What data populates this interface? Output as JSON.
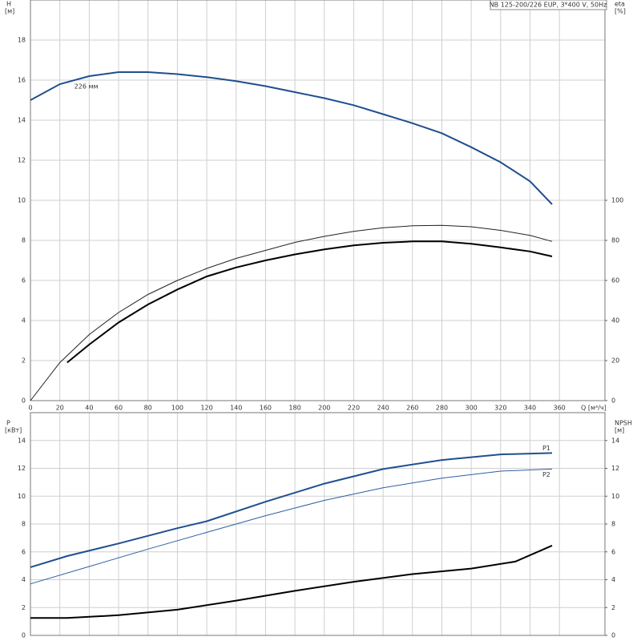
{
  "chart_data": [
    {
      "type": "line",
      "title": "NB 125-200/226 EUP, 3*400 V, 50Hz",
      "ylabel": "H",
      "yunit": "[м]",
      "y2label": "eta",
      "y2unit": "[%]",
      "xlabel": "Q [м³/ч]",
      "xlim": [
        0,
        391
      ],
      "xticks": [
        0,
        20,
        40,
        60,
        80,
        100,
        120,
        140,
        160,
        180,
        200,
        220,
        240,
        260,
        280,
        300,
        320,
        340,
        360
      ],
      "xtick_labels": true,
      "ylim": [
        0,
        20
      ],
      "yticks": [
        0,
        2,
        4,
        6,
        8,
        10,
        12,
        14,
        16,
        18
      ],
      "y2lim": [
        0,
        200
      ],
      "y2ticks": [
        0,
        20,
        40,
        60,
        80,
        100
      ],
      "grid": true,
      "series": [
        {
          "name": "226 мм",
          "color": "#1f4f8f",
          "width": 2,
          "x": [
            0,
            20,
            40,
            60,
            80,
            100,
            120,
            140,
            160,
            180,
            200,
            220,
            240,
            260,
            280,
            300,
            320,
            340,
            355
          ],
          "values": [
            15,
            15.8,
            16.2,
            16.4,
            16.4,
            16.3,
            16.15,
            15.95,
            15.7,
            15.4,
            15.1,
            14.75,
            14.3,
            13.85,
            13.35,
            12.65,
            11.9,
            10.95,
            9.8
          ]
        },
        {
          "color": "#222222",
          "width": 1,
          "axis": "y2",
          "x": [
            0,
            20,
            40,
            60,
            80,
            100,
            120,
            140,
            160,
            180,
            200,
            220,
            240,
            260,
            280,
            300,
            320,
            340,
            355
          ],
          "values": [
            0,
            19,
            33,
            44,
            53,
            60,
            66,
            71,
            75,
            79,
            82,
            84.5,
            86.3,
            87.3,
            87.5,
            86.8,
            85,
            82.5,
            79.5
          ]
        },
        {
          "color": "#000000",
          "width": 2,
          "axis": "y2",
          "x": [
            25,
            40,
            60,
            80,
            100,
            120,
            140,
            160,
            180,
            200,
            220,
            240,
            260,
            280,
            300,
            320,
            340,
            355
          ],
          "values": [
            19,
            28,
            39,
            48,
            55.5,
            62,
            66.5,
            70,
            73,
            75.5,
            77.5,
            78.8,
            79.5,
            79.5,
            78.3,
            76.5,
            74.5,
            72
          ]
        }
      ]
    },
    {
      "type": "line",
      "ylabel": "P",
      "yunit": "[кВт]",
      "y2label": "NPSH",
      "y2unit": "[м]",
      "xlim": [
        0,
        391
      ],
      "xticks": [
        0,
        20,
        40,
        60,
        80,
        100,
        120,
        140,
        160,
        180,
        200,
        220,
        240,
        260,
        280,
        300,
        320,
        340,
        360
      ],
      "xtick_labels": false,
      "ylim": [
        0,
        16
      ],
      "yticks": [
        0,
        2,
        4,
        6,
        8,
        10,
        12,
        14
      ],
      "y2lim": [
        0,
        16
      ],
      "y2ticks": [
        0,
        2,
        4,
        6,
        8,
        10,
        12,
        14
      ],
      "grid": true,
      "series": [
        {
          "name": "P1",
          "color": "#1f4f8f",
          "width": 2,
          "x": [
            0,
            25,
            60,
            100,
            120,
            160,
            200,
            240,
            280,
            320,
            355
          ],
          "values": [
            4.9,
            5.7,
            6.6,
            7.7,
            8.2,
            9.6,
            10.9,
            11.95,
            12.6,
            13.0,
            13.1
          ]
        },
        {
          "name": "P2",
          "color": "#2f5f9f",
          "width": 1,
          "x": [
            0,
            40,
            80,
            120,
            160,
            200,
            240,
            280,
            320,
            355
          ],
          "values": [
            3.7,
            4.95,
            6.2,
            7.4,
            8.6,
            9.7,
            10.6,
            11.3,
            11.8,
            11.95
          ]
        },
        {
          "color": "#000000",
          "width": 2,
          "axis": "y2",
          "x": [
            0,
            25,
            60,
            100,
            140,
            180,
            220,
            260,
            300,
            330,
            355
          ],
          "values": [
            1.25,
            1.25,
            1.45,
            1.85,
            2.5,
            3.2,
            3.85,
            4.4,
            4.8,
            5.3,
            6.45
          ]
        }
      ]
    }
  ]
}
